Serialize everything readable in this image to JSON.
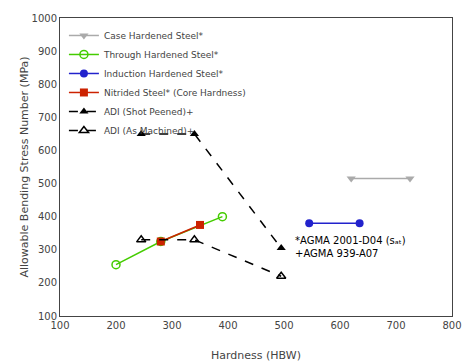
{
  "chart_data": {
    "type": "line",
    "x_label": "Hardness (HBW)",
    "y_label": "Allowable Bending Stress Number (MPa)",
    "xlim": [
      100,
      800
    ],
    "ylim": [
      100,
      1000
    ],
    "xticks": [
      100,
      200,
      300,
      400,
      500,
      600,
      700,
      800
    ],
    "yticks": [
      100,
      200,
      300,
      400,
      500,
      600,
      700,
      800,
      900,
      1000
    ],
    "grid": false,
    "legend": "upper left",
    "annotation": "*AGMA 2001-D04 (sₐₜ)\n+AGMA 939-A07",
    "series": [
      {
        "name": "Case Hardened Steel*",
        "x": [
          620,
          725
        ],
        "values": [
          515,
          515
        ],
        "color": "#aaaaaa",
        "marker": "triangle-down",
        "line_style": "solid"
      },
      {
        "name": "Through Hardened Steel*",
        "x": [
          200,
          280,
          390
        ],
        "values": [
          255,
          325,
          400
        ],
        "color": "#44cc00",
        "marker": "circle-open",
        "line_style": "solid"
      },
      {
        "name": "Induction Hardened Steel*",
        "x": [
          545,
          635
        ],
        "values": [
          380,
          380
        ],
        "color": "#2222cc",
        "marker": "circle",
        "line_style": "solid"
      },
      {
        "name": "Nitrided Steel* (Core Hardness)",
        "x": [
          280,
          350
        ],
        "values": [
          325,
          375
        ],
        "color": "#cc2200",
        "marker": "square",
        "line_style": "solid"
      },
      {
        "name": "ADI (Shot Peened)+",
        "x": [
          245,
          340,
          495
        ],
        "values": [
          650,
          650,
          305
        ],
        "color": "#000000",
        "marker": "triangle-up",
        "line_style": "dash"
      },
      {
        "name": "ADI (As Machined)+",
        "x": [
          245,
          340,
          495
        ],
        "values": [
          330,
          330,
          220
        ],
        "color": "#000000",
        "marker": "triangle-up-open",
        "line_style": "dash"
      }
    ]
  }
}
